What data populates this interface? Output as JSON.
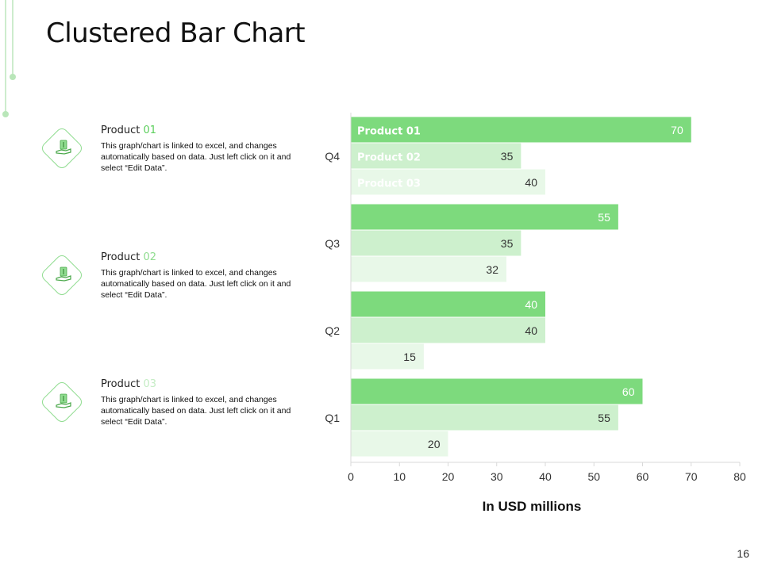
{
  "slide": {
    "title": "Clustered Bar Chart",
    "page_number": "16"
  },
  "products": [
    {
      "label": "Product",
      "code": "01",
      "code_color": "#5ccf5c",
      "description": "This graph/chart is linked to excel, and changes automatically based on data. Just left click on it and select “Edit Data”.",
      "icon": "money-hand-icon"
    },
    {
      "label": "Product",
      "code": "02",
      "code_color": "#8fdc8f",
      "description": "This graph/chart is linked to excel, and changes automatically based on data. Just left click on it and select “Edit Data”.",
      "icon": "money-hand-icon"
    },
    {
      "label": "Product",
      "code": "03",
      "code_color": "#c4ecc4",
      "description": "This graph/chart is linked to excel, and changes automatically based on data. Just left click on it and select “Edit Data”.",
      "icon": "money-hand-icon"
    }
  ],
  "colors": {
    "series1": "#7dda7d",
    "series2": "#cdf0cd",
    "series3": "#e8f8e8",
    "accent": "#5ccf5c"
  },
  "chart_data": {
    "type": "bar",
    "orientation": "horizontal",
    "categories": [
      "Q1",
      "Q2",
      "Q3",
      "Q4"
    ],
    "series": [
      {
        "name": "Product 01",
        "values": [
          60,
          40,
          55,
          70
        ]
      },
      {
        "name": "Product 02",
        "values": [
          55,
          40,
          35,
          35
        ]
      },
      {
        "name": "Product 03",
        "values": [
          20,
          15,
          32,
          40
        ]
      }
    ],
    "xlabel": "In USD millions",
    "ylabel": "",
    "xlim": [
      0,
      80
    ],
    "xticks": [
      0,
      10,
      20,
      30,
      40,
      50,
      60,
      70,
      80
    ],
    "legend": "inside-top-left",
    "grid": false
  }
}
